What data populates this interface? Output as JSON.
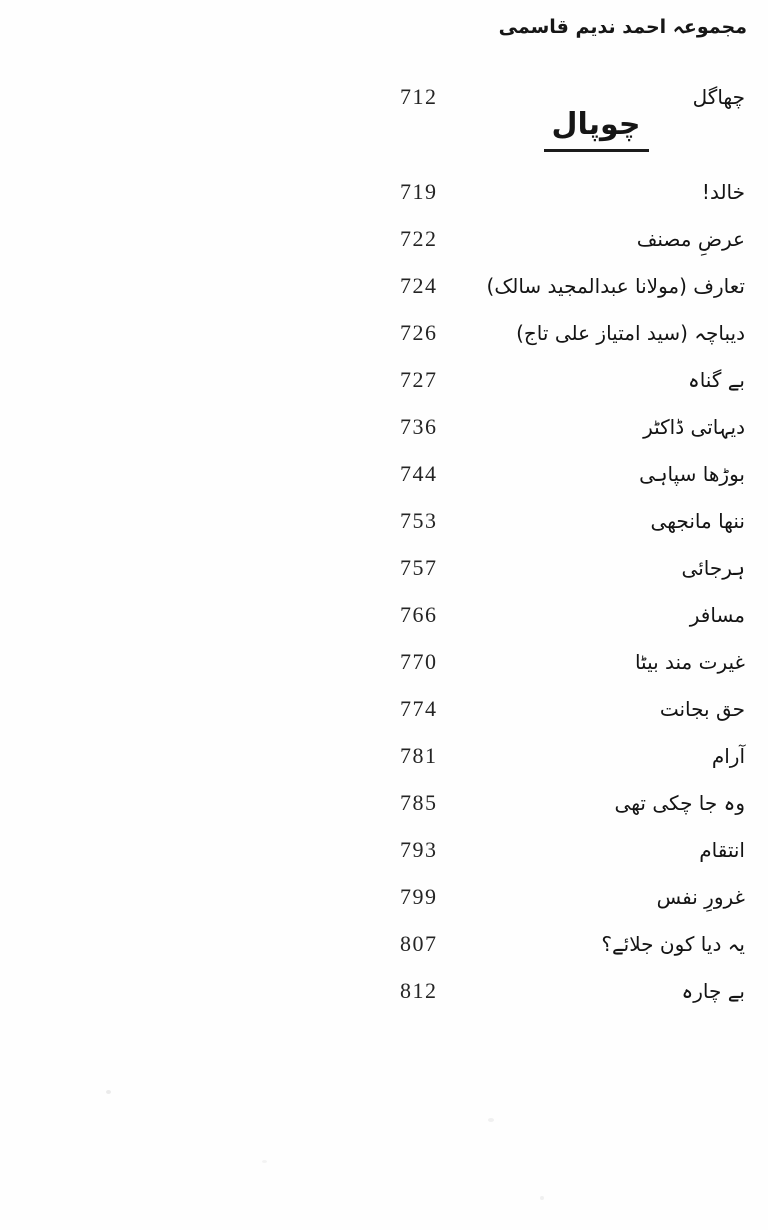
{
  "header": {
    "title": "مجموعہ احمد ندیم قاسمی"
  },
  "section": {
    "heading": "چوپال"
  },
  "toc": {
    "pre_section": {
      "title": "چھاگل",
      "page": "712"
    },
    "entries": [
      {
        "title": "خالد!",
        "page": "719"
      },
      {
        "title": "عرضِ مصنف",
        "page": "722"
      },
      {
        "title": "تعارف (مولانا عبدالمجید سالک)",
        "page": "724"
      },
      {
        "title": "دیباچہ (سید امتیاز علی تاج)",
        "page": "726"
      },
      {
        "title": "بے گناہ",
        "page": "727"
      },
      {
        "title": "دیہاتی ڈاکٹر",
        "page": "736"
      },
      {
        "title": "بوڑھا سپاہی",
        "page": "744"
      },
      {
        "title": "ننھا مانجھی",
        "page": "753"
      },
      {
        "title": "ہرجائی",
        "page": "757"
      },
      {
        "title": "مسافر",
        "page": "766"
      },
      {
        "title": "غیرت مند بیٹا",
        "page": "770"
      },
      {
        "title": "حق بجانت",
        "page": "774"
      },
      {
        "title": "آرام",
        "page": "781"
      },
      {
        "title": "وہ جا چکی تھی",
        "page": "785"
      },
      {
        "title": "انتقام",
        "page": "793"
      },
      {
        "title": "غرورِ نفس",
        "page": "799"
      },
      {
        "title": "یہ دیا کون جلائے؟",
        "page": "807"
      },
      {
        "title": "بے چارہ",
        "page": "812"
      }
    ]
  },
  "colors": {
    "ink": "#1c1c1c",
    "paper": "#fefefe"
  }
}
